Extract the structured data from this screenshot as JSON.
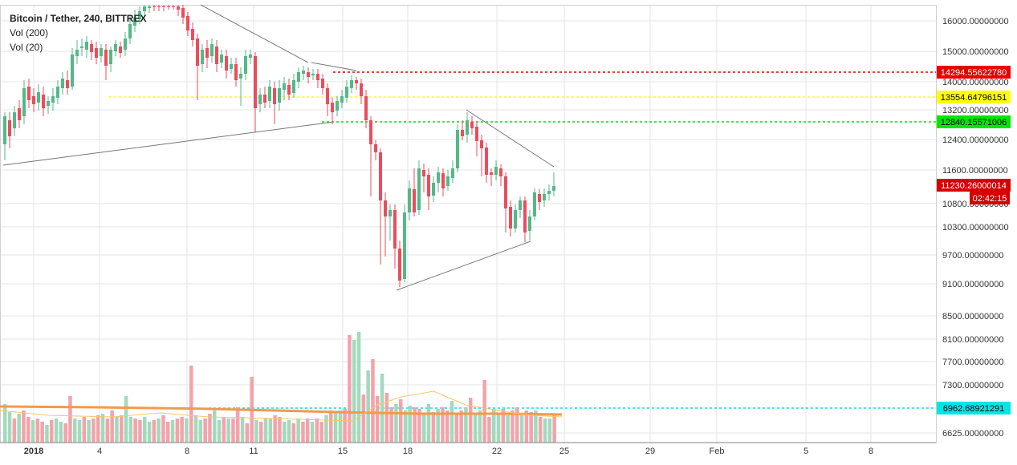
{
  "legend": {
    "title": "Bitcoin / Tether, 240, BITTREX",
    "vol200": "Vol (200)",
    "vol20": "Vol (20)"
  },
  "colors": {
    "up": "#53b987",
    "down": "#eb4d5c",
    "vol_up": "#a3d9bd",
    "vol_down": "#f3a3aa",
    "grid": "#e6e6e6",
    "red_level": "#e60000",
    "yellow_level": "#ffff00",
    "green_level": "#00e600",
    "cyan_level": "#00e5e5",
    "trend": "#777777",
    "vol_ma200": "#f39a4a",
    "vol_ma20": "#f7c66b"
  },
  "chart_data": {
    "type": "candlestick",
    "price_axis_ticks": [
      "16000.00000000",
      "15000.00000000",
      "14000.00000000",
      "13200.00000000",
      "12400.00000000",
      "11600.00000000",
      "10800.00000000",
      "10300.00000000",
      "9700.00000000",
      "9100.00000000",
      "8500.00000000",
      "8100.00000000",
      "7700.00000000",
      "7300.00000000",
      "6625.00000000"
    ],
    "time_axis_ticks": [
      "2018",
      "4",
      "8",
      "11",
      "15",
      "18",
      "22",
      "25",
      "29",
      "Feb",
      "5",
      "8"
    ],
    "levels": [
      {
        "name": "resistance-red",
        "value": "14294.55622780",
        "color": "#e60000"
      },
      {
        "name": "resistance-yellow",
        "value": "13554.64796151",
        "color": "#ffff00"
      },
      {
        "name": "support-green",
        "value": "12840.15571006",
        "color": "#00e600"
      },
      {
        "name": "volume-level-cyan",
        "value": "6962.68921291",
        "color": "#00e5e5"
      }
    ],
    "last_price": "11230.26000014",
    "countdown": "02:42:15",
    "price_range": [
      6625,
      16300
    ]
  }
}
